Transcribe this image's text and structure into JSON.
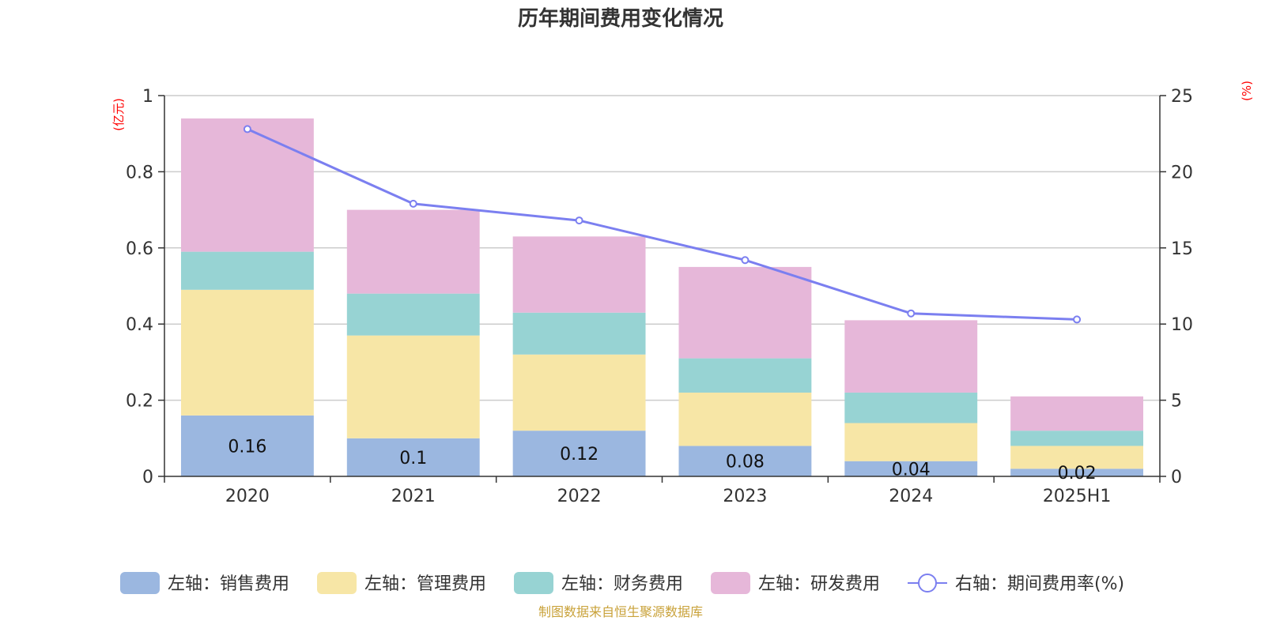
{
  "colors": {
    "sales": "#9bb7e0",
    "admin": "#f7e6a6",
    "finance": "#97d3d3",
    "rd": "#e6b7d9",
    "rate_line": "#7b7ff0",
    "unit_text": "#ff0000",
    "source_text": "#c9a23a",
    "grid": "#cccccc"
  },
  "chart_data": {
    "type": "bar",
    "stacked": true,
    "title": "历年期间费用变化情况",
    "left_axis_unit": "(亿元)",
    "right_axis_unit": "(%)",
    "categories": [
      "2020",
      "2021",
      "2022",
      "2023",
      "2024",
      "2025H1"
    ],
    "ylim_left": [
      0,
      1
    ],
    "yticks_left": [
      "0",
      "0.2",
      "0.4",
      "0.6",
      "0.8",
      "1"
    ],
    "ylim_right": [
      0,
      25
    ],
    "yticks_right": [
      "0",
      "5",
      "10",
      "15",
      "20",
      "25"
    ],
    "grid": true,
    "legend_position": "bottom",
    "series": [
      {
        "name": "左轴：销售费用",
        "axis": "left",
        "values": [
          0.16,
          0.1,
          0.12,
          0.08,
          0.04,
          0.02
        ],
        "data_labels": [
          "0.16",
          "0.1",
          "0.12",
          "0.08",
          "0.04",
          "0.02"
        ]
      },
      {
        "name": "左轴：管理费用",
        "axis": "left",
        "values": [
          0.33,
          0.27,
          0.2,
          0.14,
          0.1,
          0.06
        ]
      },
      {
        "name": "左轴：财务费用",
        "axis": "left",
        "values": [
          0.1,
          0.11,
          0.11,
          0.09,
          0.08,
          0.04
        ]
      },
      {
        "name": "左轴：研发费用",
        "axis": "left",
        "values": [
          0.35,
          0.22,
          0.2,
          0.24,
          0.19,
          0.09
        ]
      },
      {
        "name": "右轴：期间费用率(%)",
        "axis": "right",
        "type": "line",
        "values": [
          22.8,
          17.9,
          16.8,
          14.2,
          10.7,
          10.3
        ]
      }
    ]
  },
  "footer": {
    "source": "制图数据来自恒生聚源数据库"
  }
}
